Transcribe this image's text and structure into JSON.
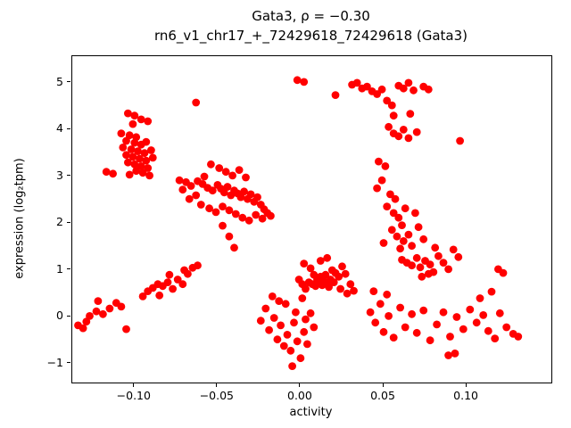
{
  "figure": {
    "title_line1": "Gata3, ρ = −0.30",
    "title_line2": "rn6_v1_chr17_+_72429618_72429618 (Gata3)",
    "xlabel": "activity",
    "ylabel": "expression (log₂tpm)"
  },
  "chart_data": {
    "type": "scatter",
    "title": "Gata3, ρ = −0.30",
    "subtitle": "rn6_v1_chr17_+_72429618_72429618 (Gata3)",
    "xlabel": "activity",
    "ylabel": "expression (log2 tpm)",
    "correlation_rho": -0.3,
    "marker_color": "#ff0000",
    "legend": "none",
    "grid": false,
    "xlim": [
      -0.1375,
      0.151
    ],
    "ylim": [
      -1.4,
      5.57
    ],
    "xticks": [
      -0.1,
      -0.05,
      0.0,
      0.05,
      0.1
    ],
    "xtick_labels": [
      "−0.10",
      "−0.05",
      "0.00",
      "0.05",
      "0.10"
    ],
    "yticks": [
      -1,
      0,
      1,
      2,
      3,
      4,
      5
    ],
    "ytick_labels": [
      "−1",
      "0",
      "1",
      "2",
      "3",
      "4",
      "5"
    ],
    "points": [
      [
        -0.104,
        4.35
      ],
      [
        -0.1,
        4.3
      ],
      [
        -0.096,
        4.22
      ],
      [
        -0.101,
        4.12
      ],
      [
        -0.092,
        4.18
      ],
      [
        -0.063,
        4.58
      ],
      [
        -0.108,
        3.92
      ],
      [
        -0.103,
        3.88
      ],
      [
        -0.099,
        3.84
      ],
      [
        -0.105,
        3.76
      ],
      [
        -0.1,
        3.72
      ],
      [
        -0.096,
        3.68
      ],
      [
        -0.093,
        3.74
      ],
      [
        -0.107,
        3.62
      ],
      [
        -0.102,
        3.58
      ],
      [
        -0.098,
        3.54
      ],
      [
        -0.094,
        3.5
      ],
      [
        -0.09,
        3.56
      ],
      [
        -0.105,
        3.46
      ],
      [
        -0.101,
        3.42
      ],
      [
        -0.097,
        3.38
      ],
      [
        -0.093,
        3.34
      ],
      [
        -0.089,
        3.4
      ],
      [
        -0.104,
        3.3
      ],
      [
        -0.1,
        3.26
      ],
      [
        -0.096,
        3.22
      ],
      [
        -0.092,
        3.18
      ],
      [
        -0.099,
        3.12
      ],
      [
        -0.095,
        3.08
      ],
      [
        -0.103,
        3.04
      ],
      [
        -0.091,
        3.02
      ],
      [
        -0.113,
        3.06
      ],
      [
        -0.117,
        3.1
      ],
      [
        -0.073,
        2.92
      ],
      [
        -0.069,
        2.88
      ],
      [
        -0.066,
        2.8
      ],
      [
        -0.071,
        2.72
      ],
      [
        -0.062,
        2.9
      ],
      [
        -0.059,
        2.84
      ],
      [
        -0.056,
        2.76
      ],
      [
        -0.053,
        2.7
      ],
      [
        -0.05,
        2.82
      ],
      [
        -0.048,
        2.74
      ],
      [
        -0.046,
        2.66
      ],
      [
        -0.044,
        2.78
      ],
      [
        -0.042,
        2.6
      ],
      [
        -0.04,
        2.7
      ],
      [
        -0.038,
        2.64
      ],
      [
        -0.036,
        2.56
      ],
      [
        -0.034,
        2.68
      ],
      [
        -0.032,
        2.52
      ],
      [
        -0.03,
        2.62
      ],
      [
        -0.028,
        2.46
      ],
      [
        -0.026,
        2.56
      ],
      [
        -0.024,
        2.4
      ],
      [
        -0.022,
        2.3
      ],
      [
        -0.02,
        2.22
      ],
      [
        -0.018,
        2.16
      ],
      [
        -0.049,
        3.18
      ],
      [
        -0.045,
        3.1
      ],
      [
        -0.041,
        3.02
      ],
      [
        -0.037,
        3.14
      ],
      [
        -0.033,
        2.98
      ],
      [
        -0.054,
        3.26
      ],
      [
        -0.058,
        3.0
      ],
      [
        -0.063,
        2.6
      ],
      [
        -0.067,
        2.52
      ],
      [
        -0.06,
        2.4
      ],
      [
        -0.055,
        2.32
      ],
      [
        -0.051,
        2.24
      ],
      [
        -0.047,
        2.36
      ],
      [
        -0.043,
        2.28
      ],
      [
        -0.039,
        2.2
      ],
      [
        -0.035,
        2.12
      ],
      [
        -0.031,
        2.06
      ],
      [
        -0.027,
        2.18
      ],
      [
        -0.023,
        2.1
      ],
      [
        -0.047,
        1.95
      ],
      [
        -0.043,
        1.72
      ],
      [
        -0.04,
        1.48
      ],
      [
        -0.134,
        -0.18
      ],
      [
        -0.131,
        -0.24
      ],
      [
        -0.127,
        0.02
      ],
      [
        -0.123,
        0.12
      ],
      [
        -0.119,
        0.06
      ],
      [
        -0.115,
        0.18
      ],
      [
        -0.111,
        0.3
      ],
      [
        -0.108,
        0.22
      ],
      [
        -0.105,
        -0.26
      ],
      [
        -0.122,
        0.34
      ],
      [
        -0.129,
        -0.1
      ],
      [
        -0.092,
        0.55
      ],
      [
        -0.089,
        0.62
      ],
      [
        -0.086,
        0.7
      ],
      [
        -0.083,
        0.66
      ],
      [
        -0.08,
        0.74
      ],
      [
        -0.077,
        0.6
      ],
      [
        -0.074,
        0.8
      ],
      [
        -0.071,
        0.7
      ],
      [
        -0.068,
        0.92
      ],
      [
        -0.065,
        1.05
      ],
      [
        -0.062,
        1.1
      ],
      [
        -0.085,
        0.46
      ],
      [
        -0.079,
        0.9
      ],
      [
        -0.07,
        1.0
      ],
      [
        -0.095,
        0.44
      ],
      [
        -0.024,
        -0.08
      ],
      [
        -0.021,
        0.18
      ],
      [
        -0.019,
        -0.28
      ],
      [
        -0.016,
        -0.02
      ],
      [
        -0.014,
        -0.48
      ],
      [
        -0.012,
        -0.18
      ],
      [
        -0.01,
        -0.62
      ],
      [
        -0.008,
        -0.38
      ],
      [
        -0.006,
        -0.72
      ],
      [
        -0.004,
        -0.12
      ],
      [
        -0.002,
        -0.52
      ],
      [
        0.0,
        -0.88
      ],
      [
        0.002,
        -0.32
      ],
      [
        0.004,
        -0.58
      ],
      [
        -0.005,
        -1.05
      ],
      [
        0.006,
        0.08
      ],
      [
        0.008,
        -0.22
      ],
      [
        -0.013,
        0.34
      ],
      [
        -0.009,
        0.28
      ],
      [
        -0.017,
        0.44
      ],
      [
        0.001,
        0.4
      ],
      [
        -0.003,
        0.1
      ],
      [
        0.003,
        -0.05
      ],
      [
        0.005,
        0.74
      ],
      [
        0.007,
        0.7
      ],
      [
        0.009,
        0.66
      ],
      [
        0.011,
        0.72
      ],
      [
        0.013,
        0.68
      ],
      [
        0.01,
        0.8
      ],
      [
        0.012,
        0.86
      ],
      [
        0.008,
        0.9
      ],
      [
        0.014,
        0.76
      ],
      [
        0.016,
        0.7
      ],
      [
        0.015,
        0.9
      ],
      [
        0.018,
        0.8
      ],
      [
        0.02,
        0.74
      ],
      [
        0.017,
        0.64
      ],
      [
        0.019,
        1.0
      ],
      [
        0.021,
        0.94
      ],
      [
        0.023,
        0.86
      ],
      [
        0.003,
        0.6
      ],
      [
        0.001,
        0.7
      ],
      [
        -0.001,
        0.8
      ],
      [
        0.025,
        1.08
      ],
      [
        0.027,
        0.92
      ],
      [
        0.024,
        0.6
      ],
      [
        0.006,
        1.04
      ],
      [
        0.002,
        1.14
      ],
      [
        0.012,
        1.2
      ],
      [
        0.016,
        1.26
      ],
      [
        0.03,
        0.7
      ],
      [
        0.032,
        0.56
      ],
      [
        0.028,
        0.5
      ],
      [
        -0.002,
        5.06
      ],
      [
        0.002,
        5.02
      ],
      [
        0.021,
        4.74
      ],
      [
        0.031,
        4.96
      ],
      [
        0.034,
        5.0
      ],
      [
        0.037,
        4.88
      ],
      [
        0.04,
        4.92
      ],
      [
        0.043,
        4.82
      ],
      [
        0.046,
        4.76
      ],
      [
        0.049,
        4.86
      ],
      [
        0.052,
        4.62
      ],
      [
        0.055,
        4.52
      ],
      [
        0.059,
        4.94
      ],
      [
        0.062,
        4.88
      ],
      [
        0.065,
        5.0
      ],
      [
        0.068,
        4.84
      ],
      [
        0.074,
        4.92
      ],
      [
        0.077,
        4.86
      ],
      [
        0.056,
        4.3
      ],
      [
        0.066,
        4.34
      ],
      [
        0.053,
        4.06
      ],
      [
        0.056,
        3.92
      ],
      [
        0.059,
        3.86
      ],
      [
        0.062,
        4.0
      ],
      [
        0.065,
        3.82
      ],
      [
        0.07,
        3.95
      ],
      [
        0.047,
        3.32
      ],
      [
        0.051,
        3.22
      ],
      [
        0.049,
        2.92
      ],
      [
        0.054,
        2.62
      ],
      [
        0.057,
        2.52
      ],
      [
        0.052,
        2.36
      ],
      [
        0.056,
        2.22
      ],
      [
        0.059,
        2.12
      ],
      [
        0.061,
        1.96
      ],
      [
        0.055,
        1.86
      ],
      [
        0.058,
        1.72
      ],
      [
        0.062,
        1.62
      ],
      [
        0.065,
        1.76
      ],
      [
        0.067,
        1.52
      ],
      [
        0.06,
        1.46
      ],
      [
        0.063,
        2.32
      ],
      [
        0.069,
        2.22
      ],
      [
        0.071,
        1.92
      ],
      [
        0.074,
        1.66
      ],
      [
        0.046,
        2.75
      ],
      [
        0.05,
        1.58
      ],
      [
        0.061,
        1.22
      ],
      [
        0.064,
        1.16
      ],
      [
        0.067,
        1.1
      ],
      [
        0.07,
        1.26
      ],
      [
        0.072,
        1.06
      ],
      [
        0.075,
        1.2
      ],
      [
        0.078,
        1.12
      ],
      [
        0.08,
        0.96
      ],
      [
        0.083,
        1.3
      ],
      [
        0.086,
        1.16
      ],
      [
        0.089,
        1.02
      ],
      [
        0.092,
        1.44
      ],
      [
        0.095,
        1.28
      ],
      [
        0.073,
        0.86
      ],
      [
        0.077,
        0.92
      ],
      [
        0.081,
        1.48
      ],
      [
        0.119,
        1.02
      ],
      [
        0.122,
        0.94
      ],
      [
        0.042,
        0.1
      ],
      [
        0.045,
        -0.12
      ],
      [
        0.048,
        0.28
      ],
      [
        0.05,
        -0.32
      ],
      [
        0.053,
        0.02
      ],
      [
        0.056,
        -0.44
      ],
      [
        0.06,
        0.2
      ],
      [
        0.063,
        -0.22
      ],
      [
        0.067,
        0.06
      ],
      [
        0.07,
        -0.34
      ],
      [
        0.074,
        0.14
      ],
      [
        0.078,
        -0.5
      ],
      [
        0.082,
        -0.16
      ],
      [
        0.086,
        0.1
      ],
      [
        0.09,
        -0.42
      ],
      [
        0.094,
        0.0
      ],
      [
        0.098,
        -0.26
      ],
      [
        0.102,
        0.16
      ],
      [
        0.106,
        -0.12
      ],
      [
        0.11,
        0.04
      ],
      [
        0.113,
        -0.3
      ],
      [
        0.117,
        -0.46
      ],
      [
        0.12,
        0.08
      ],
      [
        0.124,
        -0.22
      ],
      [
        0.128,
        -0.36
      ],
      [
        0.131,
        -0.42
      ],
      [
        0.108,
        0.4
      ],
      [
        0.115,
        0.54
      ],
      [
        0.089,
        -0.82
      ],
      [
        0.093,
        -0.78
      ],
      [
        0.044,
        0.55
      ],
      [
        0.052,
        0.48
      ],
      [
        0.096,
        3.76
      ]
    ]
  }
}
